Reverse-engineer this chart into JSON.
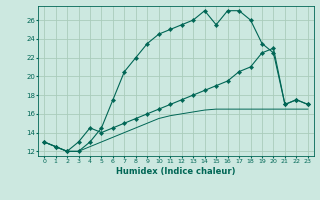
{
  "xlabel": "Humidex (Indice chaleur)",
  "bg_color": "#cce8e0",
  "grid_color": "#aaccbb",
  "line_color": "#006655",
  "xlim": [
    -0.5,
    23.5
  ],
  "ylim": [
    11.5,
    27.5
  ],
  "yticks": [
    12,
    14,
    16,
    18,
    20,
    22,
    24,
    26
  ],
  "xticks": [
    0,
    1,
    2,
    3,
    4,
    5,
    6,
    7,
    8,
    9,
    10,
    11,
    12,
    13,
    14,
    15,
    16,
    17,
    18,
    19,
    20,
    21,
    22,
    23
  ],
  "line1_x": [
    0,
    1,
    2,
    3,
    4,
    5,
    6,
    7,
    8,
    9,
    10,
    11,
    12,
    13,
    14,
    15,
    16,
    17,
    18,
    19,
    20,
    21,
    22,
    23
  ],
  "line1_y": [
    13,
    12.5,
    12,
    12,
    13,
    14.5,
    17.5,
    20.5,
    22,
    23.5,
    24.5,
    25.0,
    25.5,
    26.0,
    27.0,
    25.5,
    27.0,
    27.0,
    26.0,
    23.5,
    22.5,
    17,
    17.5,
    17
  ],
  "line2_x": [
    0,
    1,
    2,
    3,
    4,
    5,
    6,
    7,
    8,
    9,
    10,
    11,
    12,
    13,
    14,
    15,
    16,
    17,
    18,
    19,
    20,
    21,
    22,
    23
  ],
  "line2_y": [
    13,
    12.5,
    12,
    13,
    14.5,
    14.0,
    14.5,
    15.0,
    15.5,
    16.0,
    16.5,
    17.0,
    17.5,
    18.0,
    18.5,
    19.0,
    19.5,
    20.5,
    21.0,
    22.5,
    23.0,
    17.0,
    17.5,
    17.0
  ],
  "line3_x": [
    0,
    1,
    2,
    3,
    4,
    5,
    6,
    7,
    8,
    9,
    10,
    11,
    12,
    13,
    14,
    15,
    16,
    17,
    18,
    19,
    20,
    21,
    22,
    23
  ],
  "line3_y": [
    13,
    12.5,
    12,
    12,
    12.5,
    13.0,
    13.5,
    14.0,
    14.5,
    15.0,
    15.5,
    15.8,
    16.0,
    16.2,
    16.4,
    16.5,
    16.5,
    16.5,
    16.5,
    16.5,
    16.5,
    16.5,
    16.5,
    16.5
  ]
}
